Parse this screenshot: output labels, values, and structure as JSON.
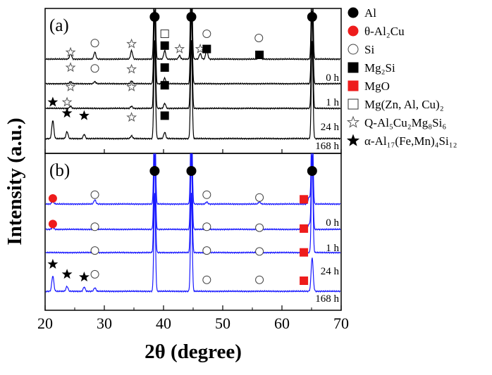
{
  "chart_data": {
    "type": "line",
    "xlabel": "2θ (degree)",
    "ylabel": "Intensity (a.u.)",
    "xlim": [
      20,
      70
    ],
    "x_ticks": [
      "20",
      "30",
      "40",
      "50",
      "60",
      "70"
    ],
    "panels": [
      {
        "label": "(a)",
        "line_color": "#000000",
        "series": [
          {
            "time_label": "0 h",
            "peaks": [
              {
                "x": 24.3,
                "h": 8
              },
              {
                "x": 28.4,
                "h": 10
              },
              {
                "x": 34.6,
                "h": 12
              },
              {
                "x": 38.5,
                "h": 140
              },
              {
                "x": 40.2,
                "h": 12
              },
              {
                "x": 42.7,
                "h": 5
              },
              {
                "x": 44.7,
                "h": 140
              },
              {
                "x": 46.2,
                "h": 8
              },
              {
                "x": 47.3,
                "h": 14
              },
              {
                "x": 56.2,
                "h": 6
              },
              {
                "x": 65.1,
                "h": 140
              }
            ]
          },
          {
            "time_label": "1 h",
            "peaks": [
              {
                "x": 24.3,
                "h": 3
              },
              {
                "x": 28.4,
                "h": 3
              },
              {
                "x": 34.6,
                "h": 4
              },
              {
                "x": 38.5,
                "h": 140
              },
              {
                "x": 40.2,
                "h": 8
              },
              {
                "x": 44.7,
                "h": 140
              },
              {
                "x": 65.1,
                "h": 140
              }
            ]
          },
          {
            "time_label": "24 h",
            "peaks": [
              {
                "x": 24.3,
                "h": 3
              },
              {
                "x": 34.6,
                "h": 3
              },
              {
                "x": 38.5,
                "h": 140
              },
              {
                "x": 40.2,
                "h": 7
              },
              {
                "x": 44.7,
                "h": 140
              },
              {
                "x": 65.1,
                "h": 140
              }
            ]
          },
          {
            "time_label": "168 h",
            "peaks": [
              {
                "x": 21.3,
                "h": 26
              },
              {
                "x": 23.7,
                "h": 10
              },
              {
                "x": 26.6,
                "h": 6
              },
              {
                "x": 34.6,
                "h": 4
              },
              {
                "x": 38.5,
                "h": 140
              },
              {
                "x": 40.2,
                "h": 9
              },
              {
                "x": 44.7,
                "h": 140
              },
              {
                "x": 65.1,
                "h": 140
              }
            ]
          }
        ],
        "markers": [
          {
            "phase": "Al",
            "x": 38.5,
            "row": 0
          },
          {
            "phase": "Al",
            "x": 44.7,
            "row": 0
          },
          {
            "phase": "Al",
            "x": 65.1,
            "row": 0
          },
          {
            "phase": "Mg(Zn, Al, Cu)2",
            "x": 40.2,
            "row": 1
          },
          {
            "phase": "Si",
            "x": 47.3,
            "row": 1
          },
          {
            "phase": "Si",
            "x": 56.1,
            "row": 1.25
          },
          {
            "phase": "Si",
            "x": 28.4,
            "row": 1.55
          },
          {
            "phase": "Q-Al5Cu2Mg8Si6",
            "x": 34.6,
            "row": 1.6
          },
          {
            "phase": "Mg2Si",
            "x": 40.2,
            "row": 1.7
          },
          {
            "phase": "Q-Al5Cu2Mg8Si6",
            "x": 42.7,
            "row": 1.9
          },
          {
            "phase": "Q-Al5Cu2Mg8Si6",
            "x": 46.2,
            "row": 1.9
          },
          {
            "phase": "Mg2Si",
            "x": 47.3,
            "row": 1.9
          },
          {
            "phase": "Q-Al5Cu2Mg8Si6",
            "x": 24.3,
            "row": 2.1
          },
          {
            "phase": "Mg2Si",
            "x": 56.2,
            "row": 2.25
          },
          {
            "phase": "Si",
            "x": 28.4,
            "row": 3.05
          },
          {
            "phase": "Q-Al5Cu2Mg8Si6",
            "x": 24.3,
            "row": 3.0
          },
          {
            "phase": "Q-Al5Cu2Mg8Si6",
            "x": 34.6,
            "row": 3.1
          },
          {
            "phase": "Mg2Si",
            "x": 40.2,
            "row": 3.0
          },
          {
            "phase": "Q-Al5Cu2Mg8Si6",
            "x": 24.3,
            "row": 4.15
          },
          {
            "phase": "Q-Al5Cu2Mg8Si6",
            "x": 34.6,
            "row": 4.15
          },
          {
            "phase": "Mg2Si",
            "x": 40.2,
            "row": 4.05
          },
          {
            "phase": "alpha-Al17(Fe,Mn)4Si12",
            "x": 21.3,
            "row": 5.05
          },
          {
            "phase": "Q-Al5Cu2Mg8Si6",
            "x": 23.7,
            "row": 5.05
          },
          {
            "phase": "alpha-Al17(Fe,Mn)4Si12",
            "x": 23.7,
            "row": 5.7
          },
          {
            "phase": "alpha-Al17(Fe,Mn)4Si12",
            "x": 26.6,
            "row": 5.85
          },
          {
            "phase": "Q-Al5Cu2Mg8Si6",
            "x": 34.6,
            "row": 5.95
          },
          {
            "phase": "Mg2Si",
            "x": 40.2,
            "row": 5.85
          }
        ]
      },
      {
        "label": "(b)",
        "line_color": "#1a1aff",
        "series": [
          {
            "time_label": "0 h",
            "peaks": [
              {
                "x": 21.3,
                "h": 4
              },
              {
                "x": 28.4,
                "h": 6
              },
              {
                "x": 38.5,
                "h": 140
              },
              {
                "x": 44.7,
                "h": 140
              },
              {
                "x": 47.3,
                "h": 3
              },
              {
                "x": 56.2,
                "h": 3
              },
              {
                "x": 64.6,
                "h": 10
              },
              {
                "x": 65.1,
                "h": 140
              }
            ]
          },
          {
            "time_label": "1 h",
            "peaks": [
              {
                "x": 21.3,
                "h": 3
              },
              {
                "x": 28.4,
                "h": 3
              },
              {
                "x": 38.5,
                "h": 140
              },
              {
                "x": 44.7,
                "h": 140
              },
              {
                "x": 64.6,
                "h": 8
              },
              {
                "x": 65.1,
                "h": 140
              }
            ]
          },
          {
            "time_label": "24 h",
            "peaks": [
              {
                "x": 28.4,
                "h": 3
              },
              {
                "x": 38.5,
                "h": 140
              },
              {
                "x": 44.7,
                "h": 140
              },
              {
                "x": 65.1,
                "h": 140
              }
            ]
          },
          {
            "time_label": "168 h",
            "peaks": [
              {
                "x": 21.3,
                "h": 22
              },
              {
                "x": 23.7,
                "h": 7
              },
              {
                "x": 26.6,
                "h": 6
              },
              {
                "x": 28.4,
                "h": 5
              },
              {
                "x": 38.5,
                "h": 140
              },
              {
                "x": 44.7,
                "h": 140
              },
              {
                "x": 65.1,
                "h": 48
              }
            ]
          }
        ],
        "markers": [
          {
            "phase": "Al",
            "x": 38.5,
            "row": 0
          },
          {
            "phase": "Al",
            "x": 44.7,
            "row": 0
          },
          {
            "phase": "Al",
            "x": 65.1,
            "row": 0
          },
          {
            "phase": "theta-Al2Cu",
            "x": 21.3,
            "row": 1.5
          },
          {
            "phase": "Si",
            "x": 28.4,
            "row": 1.3
          },
          {
            "phase": "Si",
            "x": 47.3,
            "row": 1.3
          },
          {
            "phase": "Si",
            "x": 56.2,
            "row": 1.45
          },
          {
            "phase": "MgO",
            "x": 63.7,
            "row": 1.55
          },
          {
            "phase": "theta-Al2Cu",
            "x": 21.3,
            "row": 2.9
          },
          {
            "phase": "Si",
            "x": 28.4,
            "row": 3.05
          },
          {
            "phase": "Si",
            "x": 47.3,
            "row": 3.05
          },
          {
            "phase": "Si",
            "x": 56.2,
            "row": 3.1
          },
          {
            "phase": "MgO",
            "x": 63.7,
            "row": 3.15
          },
          {
            "phase": "Si",
            "x": 28.4,
            "row": 4.35
          },
          {
            "phase": "Si",
            "x": 47.3,
            "row": 4.35
          },
          {
            "phase": "Si",
            "x": 56.2,
            "row": 4.4
          },
          {
            "phase": "MgO",
            "x": 63.7,
            "row": 4.45
          },
          {
            "phase": "alpha-Al17(Fe,Mn)4Si12",
            "x": 21.3,
            "row": 5.1
          },
          {
            "phase": "alpha-Al17(Fe,Mn)4Si12",
            "x": 23.7,
            "row": 5.65
          },
          {
            "phase": "alpha-Al17(Fe,Mn)4Si12",
            "x": 26.6,
            "row": 5.8
          },
          {
            "phase": "Si",
            "x": 28.4,
            "row": 5.65
          },
          {
            "phase": "Si",
            "x": 47.3,
            "row": 5.95
          },
          {
            "phase": "Si",
            "x": 56.2,
            "row": 5.95
          },
          {
            "phase": "MgO",
            "x": 63.7,
            "row": 6.0
          }
        ]
      }
    ],
    "legend_position": "right",
    "legend": [
      {
        "key": "Al",
        "symbol": "filled-circle",
        "color": "#000000",
        "label": "Al"
      },
      {
        "key": "theta-Al2Cu",
        "symbol": "filled-circle",
        "color": "#ee1c1c",
        "label": "θ-Al₂Cu"
      },
      {
        "key": "Si",
        "symbol": "open-circle",
        "color": "#000000",
        "label": "Si"
      },
      {
        "key": "Mg2Si",
        "symbol": "filled-square",
        "color": "#000000",
        "label": "Mg₂Si"
      },
      {
        "key": "MgO",
        "symbol": "filled-square",
        "color": "#ee1c1c",
        "label": "MgO"
      },
      {
        "key": "Mg(Zn, Al, Cu)2",
        "symbol": "open-square",
        "color": "#000000",
        "label": "Mg(Zn, Al, Cu)₂"
      },
      {
        "key": "Q-Al5Cu2Mg8Si6",
        "symbol": "open-star",
        "color": "#000000",
        "label": "Q-Al₅Cu₂Mg₈Si₆"
      },
      {
        "key": "alpha-Al17(Fe,Mn)4Si12",
        "symbol": "filled-star",
        "color": "#000000",
        "label": "α-Al₁₇(Fe,Mn)₄Si₁₂"
      }
    ]
  }
}
